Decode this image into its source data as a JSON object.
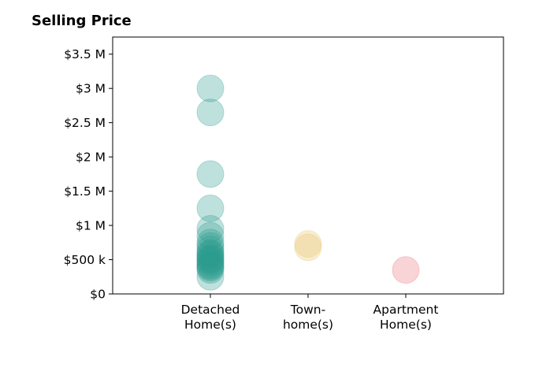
{
  "chart_data": {
    "type": "scatter",
    "title": "Selling Price",
    "xlabel": "",
    "ylabel": "",
    "categories": [
      [
        "Detached",
        "Home(s)"
      ],
      [
        "Town-",
        "home(s)"
      ],
      [
        "Apartment",
        "Home(s)"
      ]
    ],
    "ylim": [
      0,
      3750000
    ],
    "yticks": [
      {
        "value": 0,
        "label": "$0"
      },
      {
        "value": 500000,
        "label": "$500 k"
      },
      {
        "value": 1000000,
        "label": "$1 M"
      },
      {
        "value": 1500000,
        "label": "$1.5 M"
      },
      {
        "value": 2000000,
        "label": "$2 M"
      },
      {
        "value": 2500000,
        "label": "$2.5 M"
      },
      {
        "value": 3000000,
        "label": "$3 M"
      },
      {
        "value": 3500000,
        "label": "$3.5 M"
      }
    ],
    "grid": false,
    "legend": "none",
    "series": [
      {
        "category_index": 0,
        "color": "#2a9d8f",
        "values": [
          3000000,
          2650000,
          1750000,
          1250000,
          950000,
          850000,
          750000,
          700000,
          650000,
          600000,
          580000,
          550000,
          520000,
          500000,
          480000,
          450000,
          420000,
          400000,
          380000,
          350000,
          250000
        ]
      },
      {
        "category_index": 1,
        "color": "#e9c46a",
        "values": [
          730000,
          680000
        ]
      },
      {
        "category_index": 2,
        "color": "#e76f7a",
        "values": [
          350000
        ]
      }
    ]
  }
}
